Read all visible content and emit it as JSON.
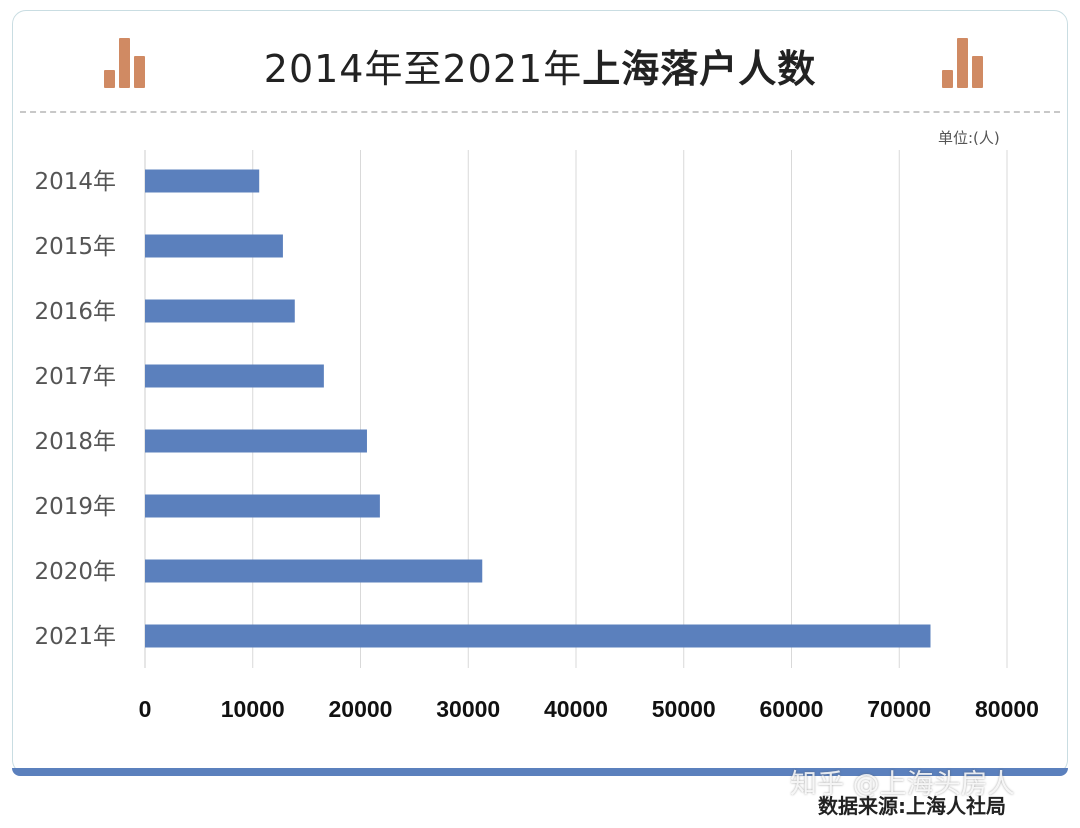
{
  "title": {
    "part1": "2014年至2021年",
    "part2": "上海落户人数"
  },
  "unit": "单位:(人)",
  "source": "数据来源:上海人社局",
  "watermark": "知乎 @上海头房人",
  "colors": {
    "bar": "#5b80bd",
    "icon": "#d08a63",
    "grid": "#d9d9d9",
    "frame": "#5b80bd"
  },
  "icons": {
    "left": "bar-chart-icon",
    "right": "bar-chart-icon"
  },
  "chart_data": {
    "type": "bar",
    "orientation": "horizontal",
    "categories": [
      "2014年",
      "2015年",
      "2016年",
      "2017年",
      "2018年",
      "2019年",
      "2020年",
      "2021年"
    ],
    "values": [
      10600,
      12800,
      13900,
      16600,
      20600,
      21800,
      31300,
      72900
    ],
    "xlim": [
      0,
      80000
    ],
    "xticks": [
      0,
      10000,
      20000,
      30000,
      40000,
      50000,
      60000,
      70000,
      80000
    ],
    "grid": "vertical"
  }
}
